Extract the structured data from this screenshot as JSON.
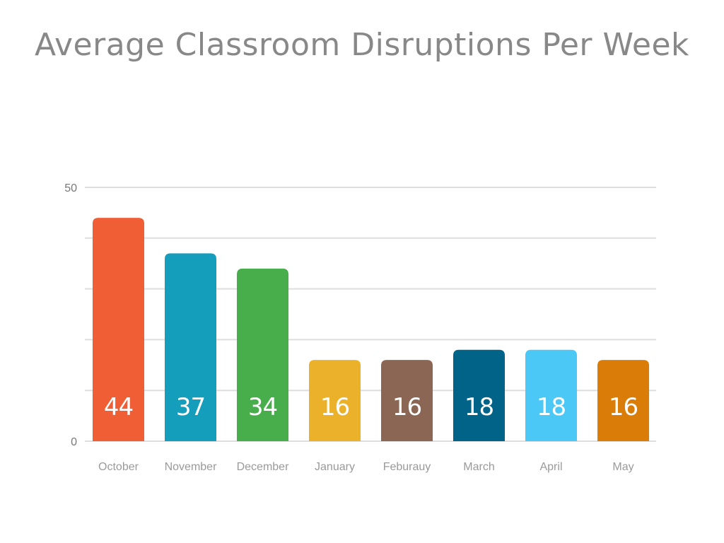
{
  "chart_data": {
    "type": "bar",
    "title": "Average Classroom Disruptions Per Week",
    "xlabel": "",
    "ylabel": "",
    "ylim": [
      0,
      50
    ],
    "yticks": [
      0,
      50
    ],
    "grid": true,
    "categories": [
      "October",
      "November",
      "December",
      "January",
      "Feburauy",
      "March",
      "April",
      "May"
    ],
    "values": [
      44,
      37,
      34,
      16,
      16,
      18,
      18,
      16
    ],
    "value_labels": [
      "44",
      "37",
      "34",
      "16",
      "16",
      "18",
      "18",
      "16"
    ],
    "colors": [
      "#EF5E35",
      "#149EBB",
      "#47AE4B",
      "#EBB12A",
      "#8B6654",
      "#006387",
      "#4BC8F5",
      "#D97C08"
    ],
    "gridline_color": "#DEDEDE"
  }
}
